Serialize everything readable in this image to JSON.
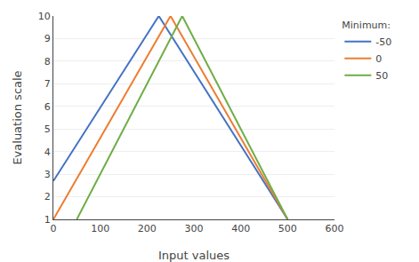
{
  "chart_data": {
    "type": "line",
    "xlabel": "Input values",
    "ylabel": "Evaluation scale",
    "legend_title": "Minimum:",
    "legend": "right",
    "grid": "y",
    "xlim": [
      0,
      600
    ],
    "ylim": [
      1,
      10
    ],
    "xticks": [
      0,
      100,
      200,
      300,
      400,
      500,
      600
    ],
    "yticks": [
      1,
      2,
      3,
      4,
      5,
      6,
      7,
      8,
      9,
      10
    ],
    "series": [
      {
        "name": "-50",
        "color": "#4472C4",
        "x": [
          0,
          225,
          500
        ],
        "values": [
          2.7,
          10,
          1
        ]
      },
      {
        "name": "0",
        "color": "#ED7D31",
        "x": [
          0,
          250,
          500
        ],
        "values": [
          1,
          10,
          1
        ]
      },
      {
        "name": "50",
        "color": "#70AD47",
        "x": [
          50,
          275,
          500
        ],
        "values": [
          1,
          10,
          1
        ]
      }
    ]
  }
}
